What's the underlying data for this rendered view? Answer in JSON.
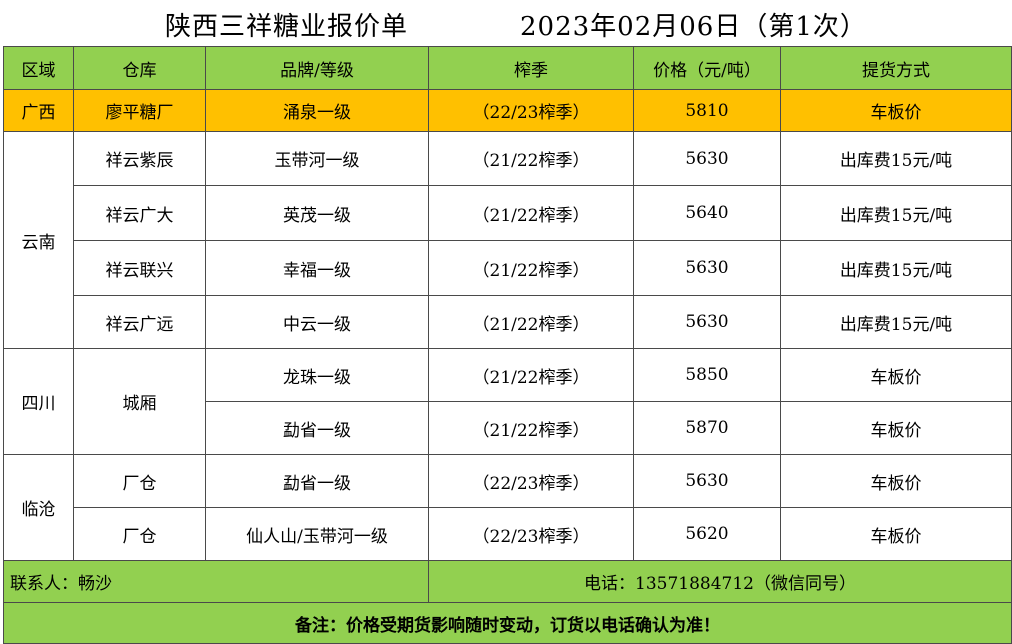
{
  "header": {
    "title": "陕西三祥糖业报价单",
    "date": "2023年02月06日（第1次）"
  },
  "columns": [
    "区域",
    "仓库",
    "品牌/等级",
    "榨季",
    "价格（元/吨）",
    "提货方式"
  ],
  "rows": [
    {
      "region": "广西",
      "warehouse": "廖平糖厂",
      "brand": "涌泉一级",
      "season": "（22/23榨季）",
      "price": "5810",
      "pickup": "车板价"
    },
    {
      "region": "云南",
      "warehouse": "祥云紫辰",
      "brand": "玉带河一级",
      "season": "（21/22榨季）",
      "price": "5630",
      "pickup": "出库费15元/吨"
    },
    {
      "warehouse": "祥云广大",
      "brand": "英茂一级",
      "season": "（21/22榨季）",
      "price": "5640",
      "pickup": "出库费15元/吨"
    },
    {
      "warehouse": "祥云联兴",
      "brand": "幸福一级",
      "season": "（21/22榨季）",
      "price": "5630",
      "pickup": "出库费15元/吨"
    },
    {
      "warehouse": "祥云广远",
      "brand": "中云一级",
      "season": "（21/22榨季）",
      "price": "5630",
      "pickup": "出库费15元/吨"
    },
    {
      "region": "四川",
      "warehouse": "城厢",
      "brand": "龙珠一级",
      "season": "（21/22榨季）",
      "price": "5850",
      "pickup": "车板价"
    },
    {
      "brand": "勐省一级",
      "season": "（21/22榨季）",
      "price": "5870",
      "pickup": "车板价"
    },
    {
      "region": "临沧",
      "warehouse": "厂仓",
      "brand": "勐省一级",
      "season": "（22/23榨季）",
      "price": "5630",
      "pickup": "车板价"
    },
    {
      "warehouse": "厂仓",
      "brand": "仙人山/玉带河一级",
      "season": "（22/23榨季）",
      "price": "5620",
      "pickup": "车板价"
    }
  ],
  "footer": {
    "contact": "联系人：畅沙",
    "phone": "电话：13571884712（微信同号）",
    "note": "备注：价格受期货影响随时变动，订货以电话确认为准！"
  },
  "colors": {
    "header_green": "#92d050",
    "highlight_orange": "#ffc000"
  }
}
